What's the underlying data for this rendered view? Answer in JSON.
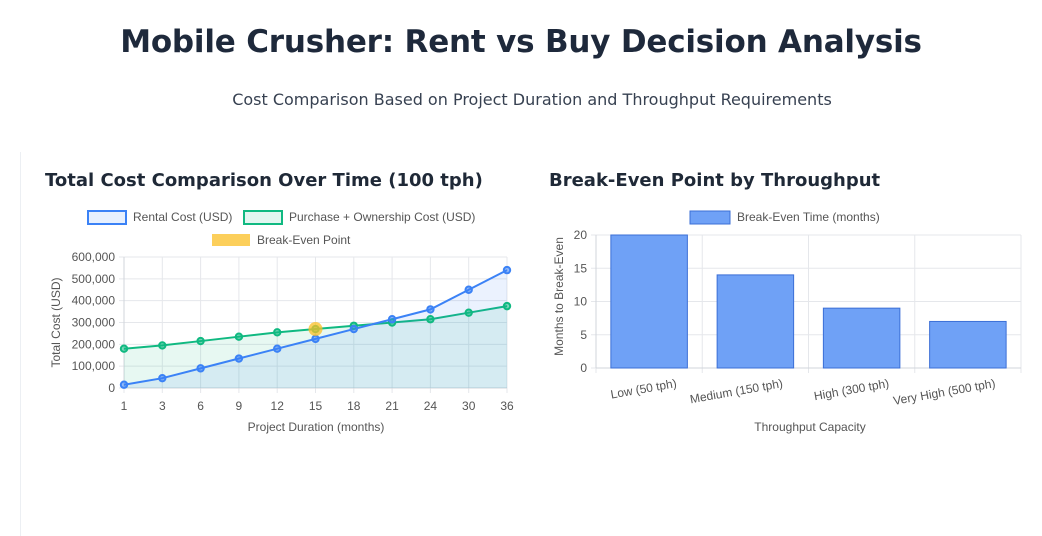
{
  "header": {
    "title": "Mobile Crusher: Rent vs Buy Decision Analysis",
    "subtitle": "Cost Comparison Based on Project Duration and Throughput Requirements"
  },
  "colors": {
    "rental": "#3b82f6",
    "purchase": "#10b981",
    "break_even": "#fbbf24",
    "bar": "#6fa1f6",
    "bar_border": "#3b6fd6"
  },
  "chart_data": [
    {
      "type": "line",
      "title": "Total Cost Comparison Over Time (100 tph)",
      "xlabel": "Project Duration (months)",
      "ylabel": "Total Cost (USD)",
      "ylim": [
        0,
        600000
      ],
      "y_ticks": [
        0,
        100000,
        200000,
        300000,
        400000,
        500000,
        600000
      ],
      "y_tick_labels": [
        "0",
        "100,000",
        "200,000",
        "300,000",
        "400,000",
        "500,000",
        "600,000"
      ],
      "categories": [
        "1",
        "3",
        "6",
        "9",
        "12",
        "15",
        "18",
        "21",
        "24",
        "30",
        "36"
      ],
      "series": [
        {
          "name": "Rental Cost (USD)",
          "values": [
            15000,
            45000,
            90000,
            135000,
            180000,
            225000,
            270000,
            315000,
            360000,
            450000,
            540000
          ]
        },
        {
          "name": "Purchase + Ownership Cost (USD)",
          "values": [
            180000,
            195000,
            215000,
            235000,
            255000,
            270000,
            285000,
            300000,
            315000,
            345000,
            375000
          ]
        }
      ],
      "break_even": {
        "name": "Break-Even Point",
        "x": "15",
        "y": 270000
      },
      "legend_position": "top",
      "grid": true
    },
    {
      "type": "bar",
      "title": "Break-Even Point by Throughput",
      "xlabel": "Throughput Capacity",
      "ylabel": "Months to Break-Even",
      "ylim": [
        0,
        20
      ],
      "y_ticks": [
        0,
        5,
        10,
        15,
        20
      ],
      "categories": [
        "Low (50 tph)",
        "Medium (150 tph)",
        "High (300 tph)",
        "Very High (500 tph)"
      ],
      "series": [
        {
          "name": "Break-Even Time (months)",
          "values": [
            20,
            14,
            9,
            7
          ]
        }
      ],
      "legend_position": "top",
      "grid": true
    }
  ]
}
